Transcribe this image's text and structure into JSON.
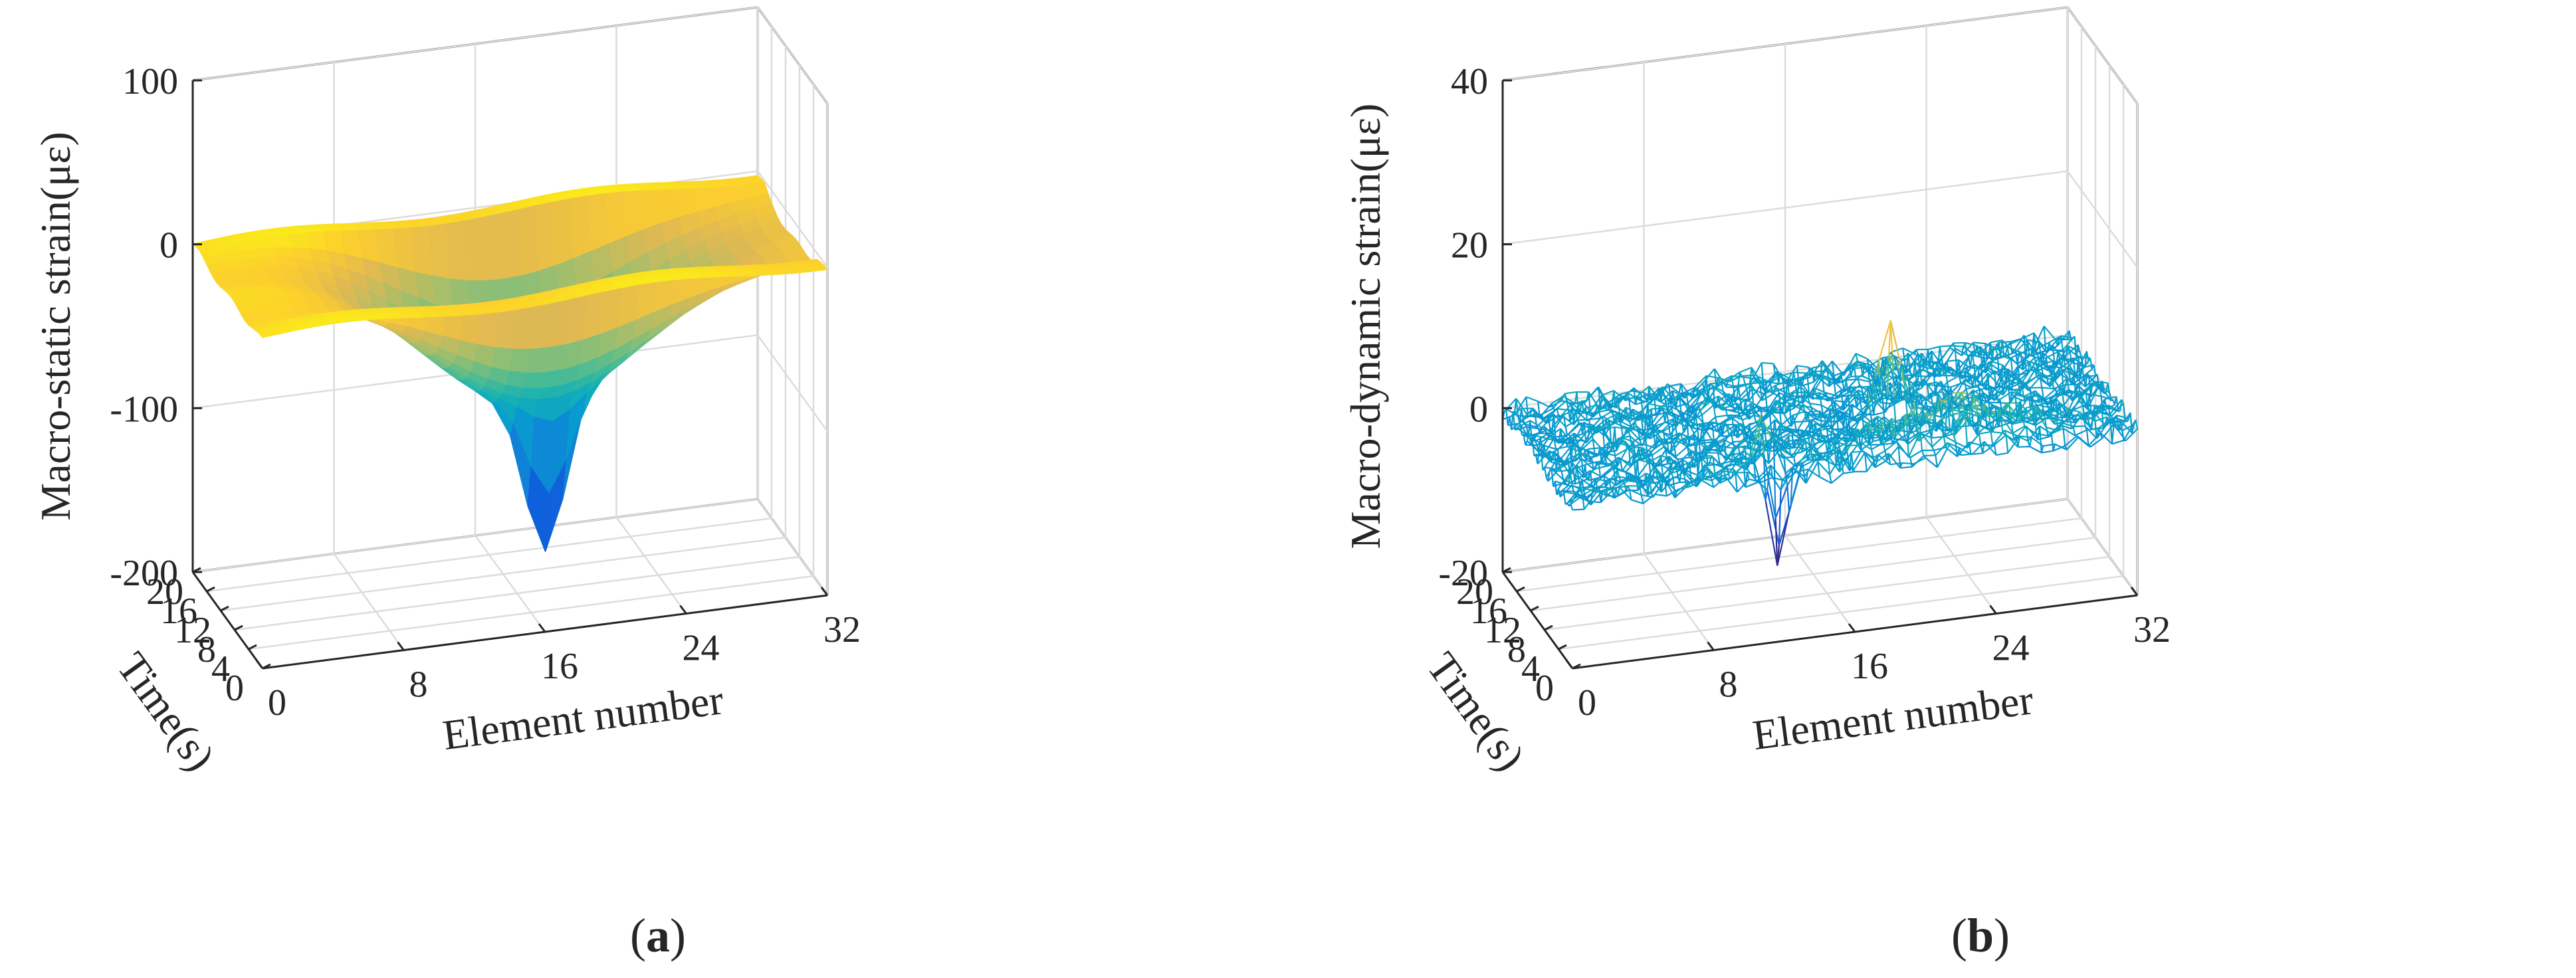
{
  "chart_data": [
    {
      "type": "surface",
      "panel": "a",
      "caption_letter": "a",
      "zlabel": "Macro-static strain(με)",
      "xlabel": "Element number",
      "ylabel": "Time(s)",
      "xlim": [
        0,
        32
      ],
      "ylim": [
        0,
        20
      ],
      "zlim": [
        -200,
        100
      ],
      "xticks": [
        "0",
        "8",
        "16",
        "24",
        "32"
      ],
      "yticks": [
        "0",
        "4",
        "8",
        "12",
        "16",
        "20"
      ],
      "zticks": [
        "-200",
        "-100",
        "0",
        "100"
      ],
      "grid": true,
      "description_values": {
        "baseline_strain": 0,
        "min_strain": -185,
        "min_at_element": 18,
        "min_at_time": 10,
        "dip_time_start": 3,
        "dip_time_end": 18
      }
    },
    {
      "type": "mesh",
      "panel": "b",
      "caption_letter": "b",
      "zlabel": "Macro-dynamic strain(με)",
      "xlabel": "Element number",
      "ylabel": "Time(s)",
      "xlim": [
        0,
        32
      ],
      "ylim": [
        0,
        20
      ],
      "zlim": [
        -20,
        40
      ],
      "xticks": [
        "0",
        "8",
        "16",
        "24",
        "32"
      ],
      "yticks": [
        "0",
        "4",
        "8",
        "12",
        "16",
        "20"
      ],
      "zticks": [
        "-20",
        "0",
        "20",
        "40"
      ],
      "grid": true,
      "description_values": {
        "baseline_strain": 0,
        "spike_max": 10,
        "spike_min": -14,
        "spike_time": 10,
        "ridge_max": 5,
        "ridge_time": 3
      }
    }
  ]
}
